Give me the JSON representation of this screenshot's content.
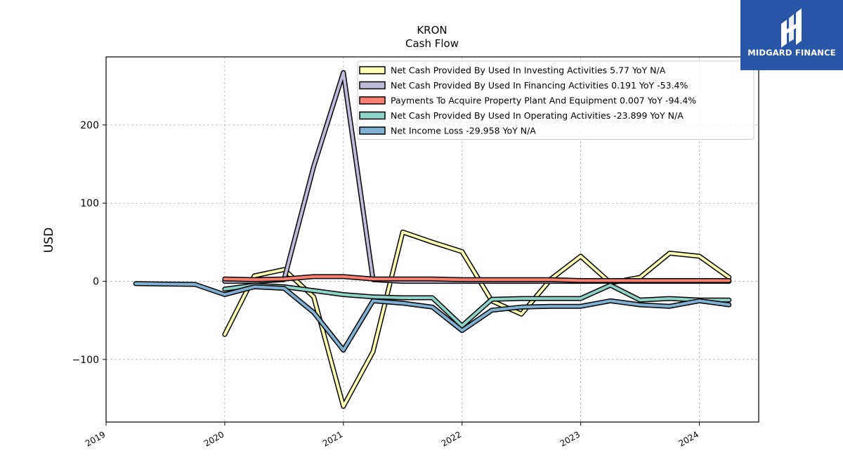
{
  "logo": {
    "text": "MIDGARD FINANCE",
    "color": "#2a56a8"
  },
  "chart_data": {
    "type": "line",
    "title": "KRON",
    "subtitle": "Cash Flow",
    "xlabel": "",
    "ylabel": "USD",
    "xlim": [
      2019.0,
      2024.5
    ],
    "ylim": [
      -180,
      287
    ],
    "x_ticks": [
      2019,
      2020,
      2021,
      2022,
      2023,
      2024
    ],
    "x_tick_labels": [
      "2019",
      "2020",
      "2021",
      "2022",
      "2023",
      "2024"
    ],
    "y_ticks": [
      -100,
      0,
      100,
      200
    ],
    "y_tick_labels": [
      "−100",
      "0",
      "100",
      "200"
    ],
    "grid": true,
    "legend_position": "top-right",
    "series": [
      {
        "name": "Net Cash Provided By Used In Investing Activities  5.77 YoY N/A",
        "color": "#ffffb3",
        "points": [
          [
            2020.0,
            -68
          ],
          [
            2020.25,
            7
          ],
          [
            2020.5,
            15
          ],
          [
            2020.75,
            -20
          ],
          [
            2021.0,
            -160
          ],
          [
            2021.25,
            -90
          ],
          [
            2021.5,
            63
          ],
          [
            2021.75,
            50
          ],
          [
            2022.0,
            38
          ],
          [
            2022.25,
            -25
          ],
          [
            2022.5,
            -42
          ],
          [
            2022.75,
            3
          ],
          [
            2023.0,
            32
          ],
          [
            2023.25,
            -2
          ],
          [
            2023.5,
            5
          ],
          [
            2023.75,
            36
          ],
          [
            2024.0,
            32
          ],
          [
            2024.25,
            5
          ]
        ]
      },
      {
        "name": "Net Cash Provided By Used In Financing Activities  0.191 YoY -53.4%",
        "color": "#bebada",
        "points": [
          [
            2020.0,
            0
          ],
          [
            2020.25,
            0
          ],
          [
            2020.5,
            2
          ],
          [
            2020.75,
            147
          ],
          [
            2021.0,
            267
          ],
          [
            2021.25,
            2
          ],
          [
            2021.5,
            0
          ],
          [
            2021.75,
            0
          ],
          [
            2022.0,
            0
          ],
          [
            2022.25,
            0
          ],
          [
            2022.5,
            0
          ],
          [
            2022.75,
            0
          ],
          [
            2023.0,
            0
          ],
          [
            2023.25,
            0
          ],
          [
            2023.5,
            0
          ],
          [
            2023.75,
            0
          ],
          [
            2024.0,
            0
          ],
          [
            2024.25,
            0
          ]
        ]
      },
      {
        "name": "Payments To Acquire Property Plant And Equipment  0.007 YoY -94.4%",
        "color": "#fb8072",
        "points": [
          [
            2020.0,
            3
          ],
          [
            2020.25,
            2
          ],
          [
            2020.5,
            3
          ],
          [
            2020.75,
            6
          ],
          [
            2021.0,
            6
          ],
          [
            2021.25,
            3
          ],
          [
            2021.5,
            3
          ],
          [
            2021.75,
            3
          ],
          [
            2022.0,
            2
          ],
          [
            2022.25,
            2
          ],
          [
            2022.5,
            2
          ],
          [
            2022.75,
            2
          ],
          [
            2023.0,
            1
          ],
          [
            2023.25,
            1
          ],
          [
            2023.5,
            1
          ],
          [
            2023.75,
            1
          ],
          [
            2024.0,
            1
          ],
          [
            2024.25,
            1
          ]
        ]
      },
      {
        "name": "Net Cash Provided By Used In Operating Activities  -23.899 YoY N/A",
        "color": "#8dd3c7",
        "points": [
          [
            2020.0,
            -10
          ],
          [
            2020.25,
            -5
          ],
          [
            2020.5,
            -7
          ],
          [
            2020.75,
            -12
          ],
          [
            2021.0,
            -17
          ],
          [
            2021.25,
            -20
          ],
          [
            2021.5,
            -21
          ],
          [
            2021.75,
            -21
          ],
          [
            2022.0,
            -57
          ],
          [
            2022.25,
            -23
          ],
          [
            2022.5,
            -22
          ],
          [
            2022.75,
            -22
          ],
          [
            2023.0,
            -22
          ],
          [
            2023.25,
            -5
          ],
          [
            2023.5,
            -24
          ],
          [
            2023.75,
            -22
          ],
          [
            2024.0,
            -24
          ],
          [
            2024.25,
            -24
          ]
        ]
      },
      {
        "name": "Net Income Loss  -29.958 YoY N/A",
        "color": "#80b1d3",
        "points": [
          [
            2019.25,
            -3
          ],
          [
            2019.75,
            -4
          ],
          [
            2020.0,
            -17
          ],
          [
            2020.25,
            -7
          ],
          [
            2020.5,
            -9
          ],
          [
            2020.75,
            -40
          ],
          [
            2021.0,
            -88
          ],
          [
            2021.25,
            -25
          ],
          [
            2021.5,
            -28
          ],
          [
            2021.75,
            -33
          ],
          [
            2022.0,
            -63
          ],
          [
            2022.25,
            -37
          ],
          [
            2022.5,
            -33
          ],
          [
            2022.75,
            -32
          ],
          [
            2023.0,
            -32
          ],
          [
            2023.25,
            -25
          ],
          [
            2023.5,
            -30
          ],
          [
            2023.75,
            -32
          ],
          [
            2024.0,
            -25
          ],
          [
            2024.25,
            -30
          ]
        ]
      }
    ]
  }
}
